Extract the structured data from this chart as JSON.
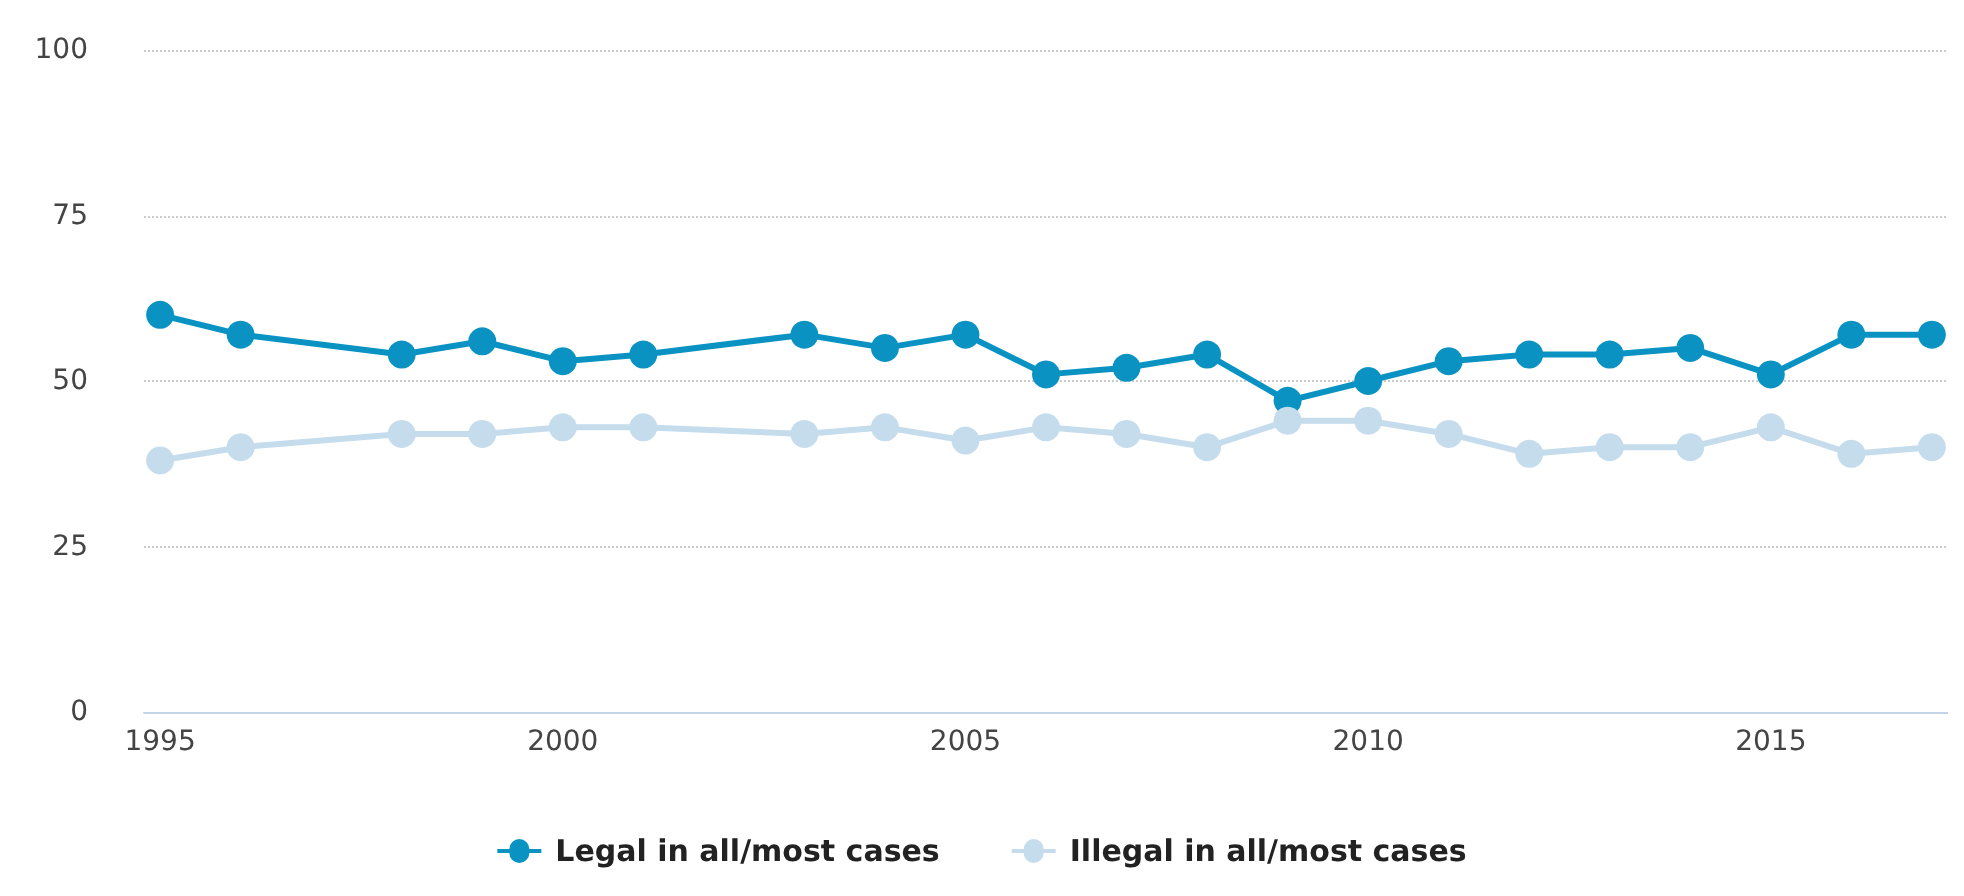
{
  "chart_data": {
    "type": "line",
    "x": [
      1995,
      1996,
      1998,
      1999,
      2000,
      2001,
      2003,
      2004,
      2005,
      2006,
      2007,
      2008,
      2009,
      2010,
      2011,
      2012,
      2013,
      2014,
      2015,
      2016,
      2017
    ],
    "series": [
      {
        "name": "Legal in all/most cases",
        "color": "#0a93c2",
        "values": [
          60,
          57,
          54,
          56,
          53,
          54,
          57,
          55,
          57,
          51,
          52,
          54,
          47,
          50,
          53,
          54,
          54,
          55,
          51,
          57,
          57
        ]
      },
      {
        "name": "Illegal in all/most cases",
        "color": "#c5dced",
        "values": [
          38,
          40,
          42,
          42,
          43,
          43,
          42,
          43,
          41,
          43,
          42,
          40,
          44,
          44,
          42,
          39,
          40,
          40,
          43,
          39,
          40
        ]
      }
    ],
    "xlim": [
      1994.8,
      2017.2
    ],
    "xticks": [
      1995,
      2000,
      2005,
      2010,
      2015
    ],
    "ylim": [
      0,
      100
    ],
    "yticks": [
      0,
      25,
      50,
      75,
      100
    ],
    "grid": "y",
    "legend": "bottom",
    "marker": "circle",
    "line_style": "solid"
  }
}
